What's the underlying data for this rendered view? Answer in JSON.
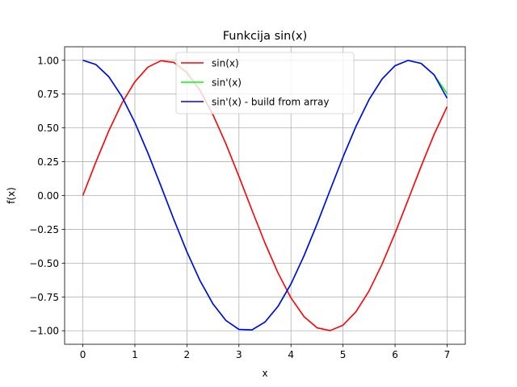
{
  "chart_data": {
    "type": "line",
    "title": "Funkcija sin(x)",
    "xlabel": "x",
    "ylabel": "f(x)",
    "xlim": [
      -0.35,
      7.35
    ],
    "ylim": [
      -1.1,
      1.1
    ],
    "xticks": [
      0,
      1,
      2,
      3,
      4,
      5,
      6,
      7
    ],
    "yticks": [
      -1.0,
      -0.75,
      -0.5,
      -0.25,
      0.0,
      0.25,
      0.5,
      0.75,
      1.0
    ],
    "xtick_labels": [
      "0",
      "1",
      "2",
      "3",
      "4",
      "5",
      "6",
      "7"
    ],
    "ytick_labels": [
      "−1.00",
      "−0.75",
      "−0.50",
      "−0.25",
      "0.00",
      "0.25",
      "0.50",
      "0.75",
      "1.00"
    ],
    "grid": true,
    "legend_position": "top-center",
    "series": [
      {
        "name": "sin(x)",
        "color": "#ff0000",
        "x": [
          0,
          0.25,
          0.5,
          0.75,
          1.0,
          1.25,
          1.5,
          1.75,
          2.0,
          2.25,
          2.5,
          2.75,
          3.0,
          3.25,
          3.5,
          3.75,
          4.0,
          4.25,
          4.5,
          4.75,
          5.0,
          5.25,
          5.5,
          5.75,
          6.0,
          6.25,
          6.5,
          6.75,
          7.0
        ],
        "y": [
          0.0,
          0.247,
          0.479,
          0.682,
          0.841,
          0.949,
          0.997,
          0.984,
          0.909,
          0.778,
          0.598,
          0.382,
          0.141,
          -0.108,
          -0.351,
          -0.572,
          -0.757,
          -0.895,
          -0.978,
          -0.999,
          -0.959,
          -0.859,
          -0.706,
          -0.508,
          -0.279,
          -0.033,
          0.215,
          0.451,
          0.657
        ]
      },
      {
        "name": "sin'(x)",
        "color": "#00ff00",
        "x": [
          0,
          0.25,
          0.5,
          0.75,
          1.0,
          1.25,
          1.5,
          1.75,
          2.0,
          2.25,
          2.5,
          2.75,
          3.0,
          3.25,
          3.5,
          3.75,
          4.0,
          4.25,
          4.5,
          4.75,
          5.0,
          5.25,
          5.5,
          5.75,
          6.0,
          6.25,
          6.5,
          6.75,
          7.0
        ],
        "y": [
          1.0,
          0.969,
          0.878,
          0.732,
          0.54,
          0.315,
          0.071,
          -0.178,
          -0.416,
          -0.628,
          -0.801,
          -0.924,
          -0.99,
          -0.994,
          -0.936,
          -0.82,
          -0.654,
          -0.446,
          -0.211,
          0.038,
          0.284,
          0.512,
          0.709,
          0.861,
          0.96,
          0.999,
          0.977,
          0.893,
          0.754
        ]
      },
      {
        "name": "sin'(x) - build from array",
        "color": "#0000ff",
        "x": [
          0,
          0.25,
          0.5,
          0.75,
          1.0,
          1.25,
          1.5,
          1.75,
          2.0,
          2.25,
          2.5,
          2.75,
          3.0,
          3.25,
          3.5,
          3.75,
          4.0,
          4.25,
          4.5,
          4.75,
          5.0,
          5.25,
          5.5,
          5.75,
          6.0,
          6.25,
          6.5,
          6.75,
          7.0
        ],
        "y": [
          1.0,
          0.969,
          0.878,
          0.732,
          0.54,
          0.315,
          0.071,
          -0.178,
          -0.416,
          -0.628,
          -0.801,
          -0.924,
          -0.99,
          -0.994,
          -0.936,
          -0.82,
          -0.654,
          -0.446,
          -0.211,
          0.038,
          0.284,
          0.512,
          0.709,
          0.861,
          0.96,
          0.999,
          0.977,
          0.893,
          0.72
        ]
      }
    ]
  }
}
